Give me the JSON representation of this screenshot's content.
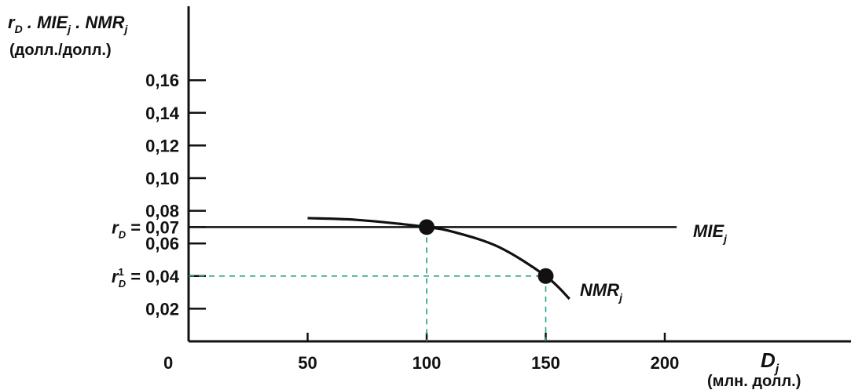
{
  "chart_data": {
    "type": "line",
    "ylabel_line1": {
      "r": "r",
      "r_sub": "D",
      "sep1": " . ",
      "mie": "MIE",
      "mie_sub": "j",
      "sep2": " . ",
      "nmr": "NMR",
      "nmr_sub": "j"
    },
    "ylabel_line2": "(долл./долл.)",
    "xlabel": {
      "main": "D",
      "sub": "j"
    },
    "xlabel_units": "(млн. долл.)",
    "xlim": [
      0,
      215
    ],
    "ylim": [
      0,
      0.175
    ],
    "x_ticks": [
      {
        "value": 50,
        "label": "50"
      },
      {
        "value": 100,
        "label": "100"
      },
      {
        "value": 150,
        "label": "150"
      },
      {
        "value": 200,
        "label": "200"
      }
    ],
    "origin_label": "0",
    "y_ticks": [
      {
        "value": 0.02,
        "label": "0,02"
      },
      {
        "value": 0.06,
        "label": "0,06"
      },
      {
        "value": 0.08,
        "label": "0,08"
      },
      {
        "value": 0.1,
        "label": "0,10"
      },
      {
        "value": 0.12,
        "label": "0,12"
      },
      {
        "value": 0.14,
        "label": "0,14"
      },
      {
        "value": 0.16,
        "label": "0,16"
      }
    ],
    "special_y_labels": [
      {
        "value": 0.07,
        "prefix": "r",
        "sub": "D",
        "sup": "",
        "text": " = 0,07"
      },
      {
        "value": 0.04,
        "prefix": "r",
        "sub": "D",
        "sup": "1",
        "text": " = 0,04"
      }
    ],
    "series": [
      {
        "name_main": "MIE",
        "name_sub": "j",
        "x": [
          0,
          205
        ],
        "y": [
          0.07,
          0.07
        ]
      },
      {
        "name_main": "NMR",
        "name_sub": "j",
        "x": [
          50,
          70,
          90,
          100,
          110,
          130,
          150,
          160
        ],
        "y": [
          0.0755,
          0.0745,
          0.0718,
          0.07,
          0.0675,
          0.058,
          0.04,
          0.026
        ]
      }
    ],
    "points": [
      {
        "x": 100,
        "y": 0.07
      },
      {
        "x": 150,
        "y": 0.04
      }
    ],
    "guides": [
      {
        "from": [
          0,
          0.04
        ],
        "to": [
          150,
          0.04
        ]
      },
      {
        "from": [
          100,
          0.07
        ],
        "to": [
          100,
          0
        ]
      },
      {
        "from": [
          150,
          0.04
        ],
        "to": [
          150,
          0
        ]
      }
    ],
    "colors": {
      "ink": "#111111",
      "guide": "#2aa08a"
    }
  }
}
